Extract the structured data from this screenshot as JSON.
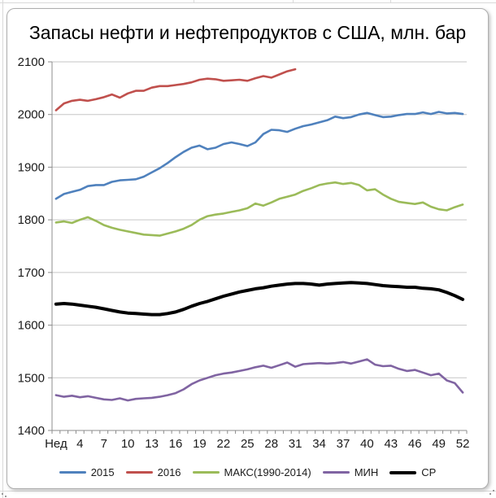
{
  "chart_data": {
    "type": "line",
    "title": "Запасы нефти и нефтепродуктов с США, млн. бар",
    "xlabel": "",
    "ylabel": "",
    "ylim": [
      1400,
      2100
    ],
    "y_ticks": [
      1400,
      1500,
      1600,
      1700,
      1800,
      1900,
      2000,
      2100
    ],
    "n_weeks": 52,
    "x_tick_weeks": [
      1,
      4,
      7,
      10,
      13,
      16,
      19,
      22,
      25,
      28,
      31,
      34,
      37,
      40,
      43,
      46,
      49,
      52
    ],
    "x_tick_labels": [
      "Нед",
      "4",
      "7",
      "10",
      "13",
      "16",
      "19",
      "22",
      "25",
      "28",
      "31",
      "34",
      "37",
      "40",
      "43",
      "46",
      "49",
      "52"
    ],
    "grid": "horizontal",
    "grid_color": "#c6c6c6",
    "axis_color": "#8c8c8c",
    "label_color": "#1a1a1a",
    "legend_position": "bottom",
    "series": [
      {
        "name": "2015",
        "color": "#4F81BD",
        "width": 2.6,
        "values": [
          1840,
          1849,
          1853,
          1857,
          1864,
          1866,
          1866,
          1872,
          1875,
          1876,
          1877,
          1882,
          1890,
          1898,
          1908,
          1919,
          1929,
          1937,
          1941,
          1934,
          1937,
          1944,
          1947,
          1944,
          1940,
          1947,
          1963,
          1971,
          1970,
          1967,
          1973,
          1978,
          1981,
          1985,
          1989,
          1996,
          1993,
          1995,
          2000,
          2003,
          1999,
          1995,
          1996,
          1999,
          2001,
          2001,
          2004,
          2001,
          2005,
          2002,
          2003,
          2001
        ]
      },
      {
        "name": "2016",
        "color": "#C0504D",
        "width": 2.6,
        "values": [
          2008,
          2021,
          2026,
          2028,
          2026,
          2029,
          2033,
          2038,
          2032,
          2040,
          2045,
          2045,
          2051,
          2054,
          2054,
          2056,
          2058,
          2061,
          2066,
          2068,
          2067,
          2064,
          2065,
          2066,
          2064,
          2069,
          2073,
          2070,
          2076,
          2082,
          2086
        ]
      },
      {
        "name": "МАКС(1990-2014)",
        "color": "#9BBB59",
        "width": 2.6,
        "values": [
          1795,
          1797,
          1794,
          1800,
          1805,
          1798,
          1790,
          1785,
          1781,
          1778,
          1775,
          1772,
          1771,
          1770,
          1774,
          1778,
          1783,
          1790,
          1800,
          1807,
          1810,
          1812,
          1815,
          1818,
          1822,
          1831,
          1827,
          1833,
          1840,
          1844,
          1848,
          1855,
          1860,
          1866,
          1869,
          1871,
          1868,
          1870,
          1866,
          1856,
          1858,
          1848,
          1840,
          1834,
          1832,
          1830,
          1833,
          1825,
          1820,
          1818,
          1824,
          1829
        ]
      },
      {
        "name": "МИН",
        "color": "#8064A2",
        "width": 2.6,
        "values": [
          1467,
          1464,
          1466,
          1463,
          1465,
          1462,
          1459,
          1458,
          1461,
          1457,
          1460,
          1461,
          1462,
          1464,
          1467,
          1471,
          1478,
          1488,
          1495,
          1500,
          1505,
          1508,
          1510,
          1513,
          1516,
          1520,
          1523,
          1519,
          1524,
          1529,
          1521,
          1526,
          1527,
          1528,
          1527,
          1528,
          1530,
          1527,
          1531,
          1535,
          1525,
          1522,
          1523,
          1517,
          1513,
          1515,
          1510,
          1505,
          1508,
          1495,
          1490,
          1472
        ]
      },
      {
        "name": "СР",
        "color": "#000000",
        "width": 4,
        "values": [
          1640,
          1641,
          1640,
          1638,
          1636,
          1634,
          1631,
          1628,
          1625,
          1623,
          1622,
          1621,
          1620,
          1620,
          1622,
          1625,
          1630,
          1636,
          1641,
          1645,
          1650,
          1655,
          1659,
          1663,
          1666,
          1669,
          1671,
          1674,
          1676,
          1678,
          1679,
          1679,
          1678,
          1676,
          1678,
          1679,
          1680,
          1681,
          1680,
          1679,
          1677,
          1675,
          1674,
          1673,
          1672,
          1672,
          1670,
          1669,
          1667,
          1662,
          1656,
          1649
        ]
      }
    ]
  }
}
